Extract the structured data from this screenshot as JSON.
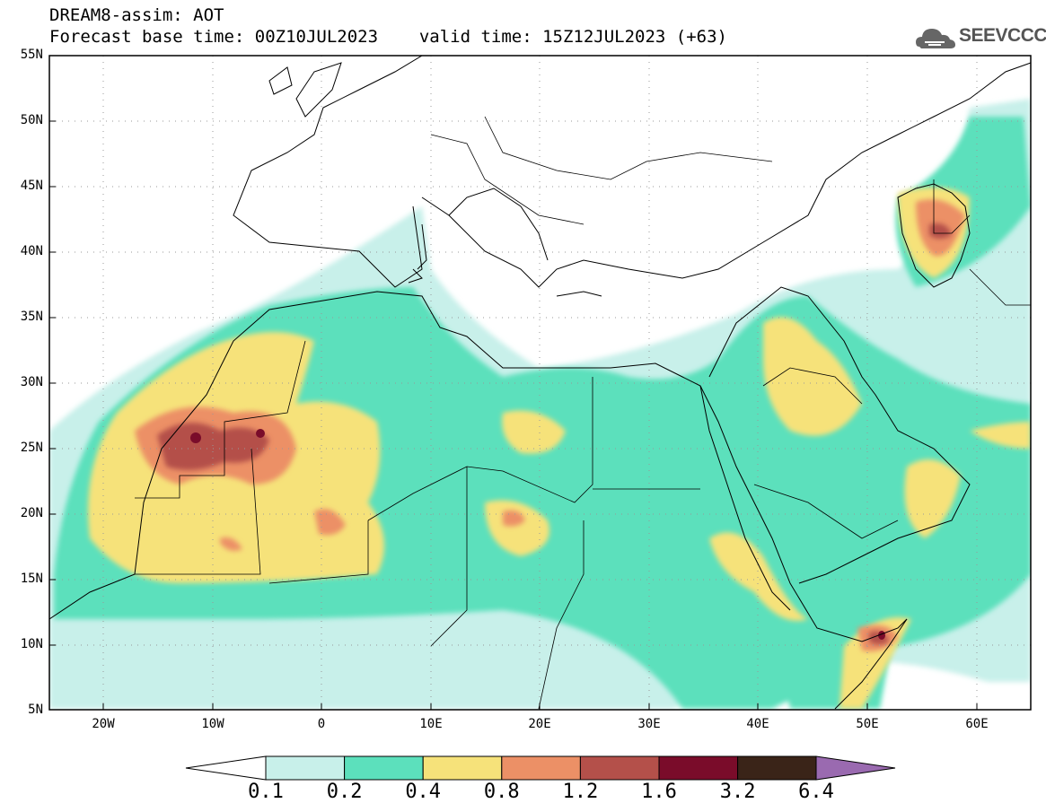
{
  "header": {
    "title": "DREAM8-assim: AOT",
    "base_time_label": "Forecast base time: 00Z10JUL2023",
    "valid_time_label": "valid time: 15Z12JUL2023 (+63)",
    "logo_text": "SEEVCCC"
  },
  "map": {
    "lat_labels": [
      "55N",
      "50N",
      "45N",
      "40N",
      "35N",
      "30N",
      "25N",
      "20N",
      "15N",
      "10N",
      "5N"
    ],
    "lon_labels": [
      "20W",
      "10W",
      "0",
      "10E",
      "20E",
      "30E",
      "40E",
      "50E",
      "60E"
    ],
    "extent": {
      "lon": [
        -25,
        65
      ],
      "lat": [
        5,
        55
      ]
    }
  },
  "colorbar": {
    "levels": [
      "0.1",
      "0.2",
      "0.4",
      "0.8",
      "1.2",
      "1.6",
      "3.2",
      "6.4"
    ],
    "colors": [
      "#ffffff",
      "#c8f0ea",
      "#5ce0bc",
      "#f6e27a",
      "#ec9066",
      "#b4504a",
      "#7a0c2a",
      "#3a2418",
      "#9a6ab0"
    ]
  }
}
